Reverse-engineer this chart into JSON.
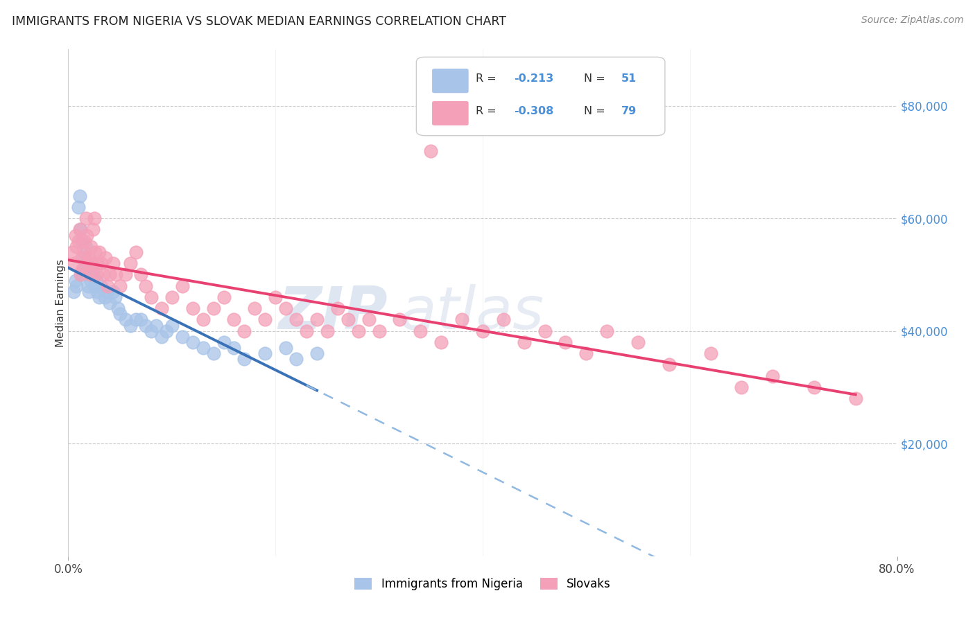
{
  "title": "IMMIGRANTS FROM NIGERIA VS SLOVAK MEDIAN EARNINGS CORRELATION CHART",
  "source": "Source: ZipAtlas.com",
  "ylabel": "Median Earnings",
  "ylabel_right_ticks": [
    "$80,000",
    "$60,000",
    "$40,000",
    "$20,000"
  ],
  "ylabel_right_values": [
    80000,
    60000,
    40000,
    20000
  ],
  "legend_labels": [
    "Immigrants from Nigeria",
    "Slovaks"
  ],
  "legend_r_nig": "-0.213",
  "legend_n_nig": "51",
  "legend_r_slv": "-0.308",
  "legend_n_slv": "79",
  "color_nigeria": "#a8c4e8",
  "color_slovak": "#f4a0b8",
  "color_nigeria_line_solid": "#3a72b8",
  "color_nigeria_line_dash": "#90b8e0",
  "color_slovak_line_solid": "#e84070",
  "xlim": [
    0.0,
    0.8
  ],
  "ylim": [
    0,
    90000
  ],
  "figsize": [
    14.06,
    8.92
  ],
  "dpi": 100
}
